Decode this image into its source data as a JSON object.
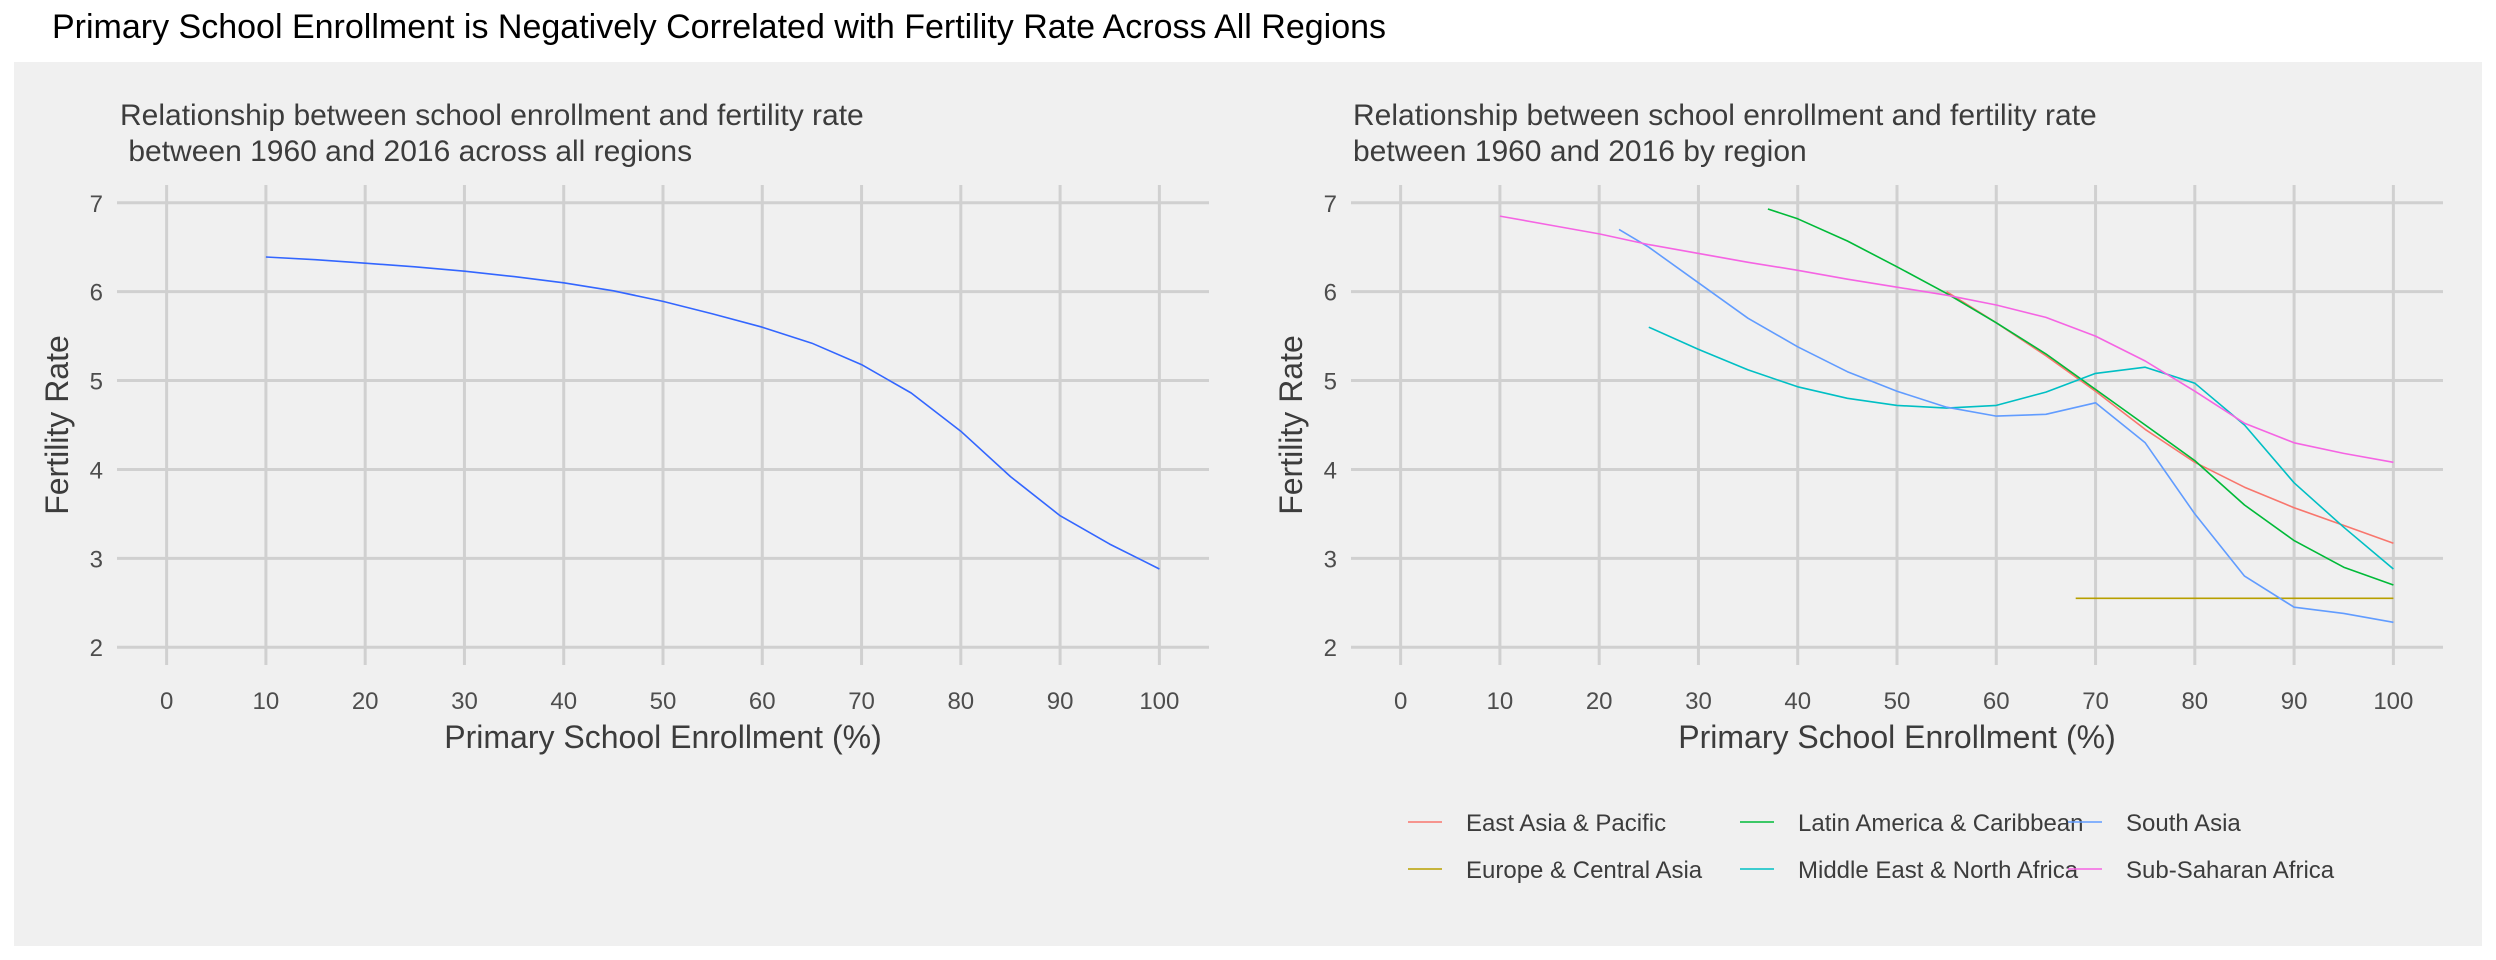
{
  "title": "Primary School Enrollment is Negatively Correlated with Fertility Rate Across All Regions",
  "chart_data": [
    {
      "type": "line",
      "subtitle": [
        "Relationship between school enrollment and fertility rate",
        " between 1960 and 2016 across all regions"
      ],
      "xlabel": "Primary School Enrollment (%)",
      "ylabel": "Fertility Rate",
      "xlim": [
        -5,
        105
      ],
      "ylim": [
        1.8,
        7.2
      ],
      "xticks": [
        0,
        10,
        20,
        30,
        40,
        50,
        60,
        70,
        80,
        90,
        100
      ],
      "yticks": [
        2,
        3,
        4,
        5,
        6,
        7
      ],
      "grid": true,
      "series": [
        {
          "color": "#3366ff",
          "x": [
            10,
            15,
            20,
            25,
            30,
            35,
            40,
            45,
            50,
            55,
            60,
            65,
            70,
            75,
            80,
            85,
            90,
            95,
            100
          ],
          "y": [
            6.39,
            6.36,
            6.32,
            6.28,
            6.23,
            6.17,
            6.1,
            6.01,
            5.89,
            5.75,
            5.6,
            5.42,
            5.18,
            4.86,
            4.43,
            3.92,
            3.48,
            3.16,
            2.88
          ]
        }
      ]
    },
    {
      "type": "line",
      "subtitle": [
        "Relationship between school enrollment and fertility rate",
        "between 1960 and 2016 by region"
      ],
      "xlabel": "Primary School Enrollment (%)",
      "ylabel": "Fertility Rate",
      "xlim": [
        -5,
        105
      ],
      "ylim": [
        1.8,
        7.2
      ],
      "xticks": [
        0,
        10,
        20,
        30,
        40,
        50,
        60,
        70,
        80,
        90,
        100
      ],
      "yticks": [
        2,
        3,
        4,
        5,
        6,
        7
      ],
      "grid": true,
      "legend_position": "bottom",
      "series": [
        {
          "name": "East Asia & Pacific",
          "color": "#f8766d",
          "x": [
            55,
            60,
            65,
            70,
            75,
            80,
            85,
            90,
            95,
            100
          ],
          "y": [
            6.0,
            5.65,
            5.28,
            4.88,
            4.45,
            4.08,
            3.8,
            3.57,
            3.37,
            3.17
          ]
        },
        {
          "name": "Europe & Central Asia",
          "color": "#b79f00",
          "x": [
            68,
            100
          ],
          "y": [
            2.55,
            2.55
          ]
        },
        {
          "name": "Latin America & Caribbean",
          "color": "#00ba38",
          "x": [
            37,
            40,
            45,
            50,
            55,
            60,
            65,
            70,
            75,
            80,
            85,
            90,
            95,
            100
          ],
          "y": [
            6.93,
            6.82,
            6.57,
            6.28,
            5.98,
            5.65,
            5.3,
            4.9,
            4.5,
            4.1,
            3.6,
            3.2,
            2.9,
            2.7
          ]
        },
        {
          "name": "Middle East & North Africa",
          "color": "#00bfc4",
          "x": [
            25,
            30,
            35,
            40,
            45,
            50,
            55,
            60,
            65,
            70,
            75,
            80,
            85,
            90,
            95,
            100
          ],
          "y": [
            5.6,
            5.35,
            5.12,
            4.93,
            4.8,
            4.72,
            4.69,
            4.72,
            4.87,
            5.08,
            5.15,
            4.97,
            4.5,
            3.85,
            3.35,
            2.88
          ]
        },
        {
          "name": "South Asia",
          "color": "#619cff",
          "x": [
            22,
            25,
            30,
            35,
            40,
            45,
            50,
            55,
            60,
            65,
            70,
            75,
            80,
            85,
            90,
            95,
            100
          ],
          "y": [
            6.7,
            6.5,
            6.1,
            5.7,
            5.38,
            5.1,
            4.88,
            4.7,
            4.6,
            4.62,
            4.75,
            4.3,
            3.5,
            2.8,
            2.45,
            2.38,
            2.28
          ]
        },
        {
          "name": "Sub-Saharan Africa",
          "color": "#f564e3",
          "x": [
            10,
            15,
            20,
            25,
            30,
            35,
            40,
            45,
            50,
            55,
            60,
            65,
            70,
            75,
            80,
            85,
            90,
            95,
            100
          ],
          "y": [
            6.85,
            6.75,
            6.65,
            6.53,
            6.43,
            6.33,
            6.24,
            6.14,
            6.05,
            5.96,
            5.85,
            5.71,
            5.5,
            5.22,
            4.88,
            4.52,
            4.3,
            4.18,
            4.08
          ]
        }
      ]
    }
  ]
}
